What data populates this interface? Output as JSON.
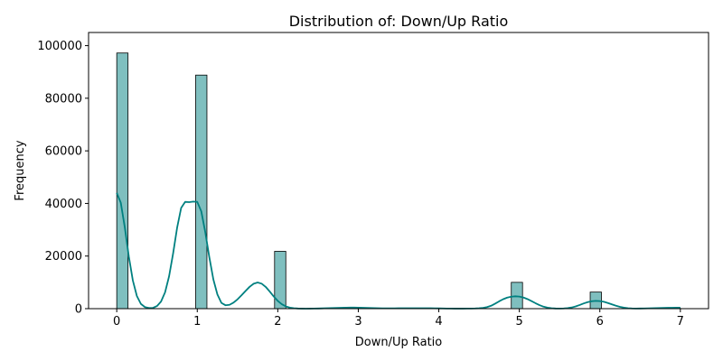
{
  "chart_data": {
    "type": "bar",
    "title": "Distribution of: Down/Up Ratio",
    "xlabel": "Down/Up Ratio",
    "ylabel": "Frequency",
    "xlim": [
      -0.35,
      7.35
    ],
    "ylim": [
      0,
      105000
    ],
    "xticks": [
      0,
      1,
      2,
      3,
      4,
      5,
      6,
      7
    ],
    "yticks": [
      0,
      20000,
      40000,
      60000,
      80000,
      100000
    ],
    "grid": false,
    "legend": "none",
    "bar_color": "#7fbfbf",
    "bar_edge_color": "#000000",
    "kde_color": "#008080",
    "bins": [
      {
        "x0": 0.0,
        "x1": 0.14,
        "count": 97200
      },
      {
        "x0": 0.98,
        "x1": 1.12,
        "count": 88800
      },
      {
        "x0": 1.96,
        "x1": 2.1,
        "count": 21800
      },
      {
        "x0": 2.94,
        "x1": 3.08,
        "count": 150
      },
      {
        "x0": 3.92,
        "x1": 4.06,
        "count": 80
      },
      {
        "x0": 4.9,
        "x1": 5.04,
        "count": 10000
      },
      {
        "x0": 5.88,
        "x1": 6.02,
        "count": 6300
      },
      {
        "x0": 6.86,
        "x1": 7.0,
        "count": 150
      }
    ],
    "kde": {
      "x": [
        0,
        0.05,
        0.1,
        0.15,
        0.2,
        0.25,
        0.3,
        0.35,
        0.4,
        0.45,
        0.5,
        0.55,
        0.6,
        0.65,
        0.7,
        0.75,
        0.8,
        0.85,
        0.9,
        0.95,
        1.0,
        1.05,
        1.1,
        1.15,
        1.2,
        1.25,
        1.3,
        1.35,
        1.4,
        1.45,
        1.5,
        1.55,
        1.6,
        1.65,
        1.7,
        1.75,
        1.8,
        1.85,
        1.9,
        1.95,
        2.0,
        2.05,
        2.1,
        2.15,
        2.2,
        2.25,
        2.3,
        2.35,
        2.4,
        2.45,
        2.5,
        2.55,
        2.6,
        2.65,
        2.7,
        2.75,
        2.8,
        2.85,
        2.9,
        2.95,
        3.0,
        3.05,
        3.1,
        3.15,
        3.2,
        3.25,
        3.3,
        3.35,
        3.4,
        3.45,
        3.5,
        3.55,
        3.6,
        3.65,
        3.7,
        3.75,
        3.8,
        3.85,
        3.9,
        3.95,
        4.0,
        4.05,
        4.1,
        4.15,
        4.2,
        4.25,
        4.3,
        4.35,
        4.4,
        4.45,
        4.5,
        4.55,
        4.6,
        4.65,
        4.7,
        4.75,
        4.8,
        4.85,
        4.9,
        4.95,
        5.0,
        5.05,
        5.1,
        5.15,
        5.2,
        5.25,
        5.3,
        5.35,
        5.4,
        5.45,
        5.5,
        5.55,
        5.6,
        5.65,
        5.7,
        5.75,
        5.8,
        5.85,
        5.9,
        5.95,
        6.0,
        6.05,
        6.1,
        6.15,
        6.2,
        6.25,
        6.3,
        6.35,
        6.4,
        6.45,
        6.5,
        6.55,
        6.6,
        6.65,
        6.7,
        6.75,
        6.8,
        6.85,
        6.9,
        6.95,
        7.0
      ],
      "y": [
        44000,
        40300,
        30900,
        19800,
        10700,
        4800,
        1800,
        600,
        250,
        300,
        1000,
        2700,
        6200,
        12300,
        21000,
        30800,
        38300,
        40600,
        40500,
        40700,
        40600,
        37000,
        29000,
        19500,
        11100,
        5400,
        2200,
        1300,
        1450,
        2300,
        3550,
        5100,
        6750,
        8300,
        9480,
        9950,
        9500,
        8270,
        6520,
        4630,
        2950,
        1690,
        870,
        400,
        165,
        60,
        20,
        10,
        20,
        40,
        60,
        100,
        160,
        210,
        250,
        300,
        340,
        380,
        400,
        400,
        380,
        340,
        290,
        240,
        190,
        160,
        140,
        130,
        130,
        140,
        150,
        160,
        170,
        180,
        180,
        180,
        170,
        160,
        150,
        130,
        110,
        80,
        50,
        30,
        20,
        20,
        20,
        30,
        50,
        80,
        150,
        300,
        600,
        1100,
        1900,
        2800,
        3600,
        4200,
        4560,
        4690,
        4600,
        4250,
        3650,
        2900,
        2100,
        1350,
        750,
        370,
        160,
        70,
        50,
        90,
        210,
        450,
        850,
        1400,
        2000,
        2500,
        2820,
        2950,
        2870,
        2600,
        2150,
        1640,
        1130,
        700,
        380,
        180,
        80,
        50,
        60,
        90,
        130,
        170,
        210,
        250,
        290,
        320,
        350,
        370,
        380
      ]
    }
  }
}
